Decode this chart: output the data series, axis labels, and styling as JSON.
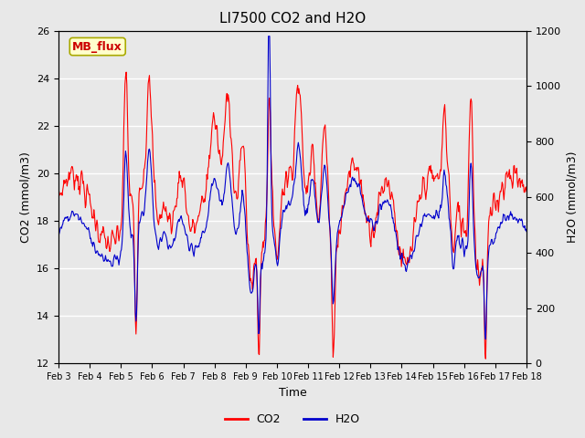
{
  "title": "LI7500 CO2 and H2O",
  "xlabel": "Time",
  "ylabel_left": "CO2 (mmol/m3)",
  "ylabel_right": "H2O (mmol/m3)",
  "ylim_left": [
    12,
    26
  ],
  "ylim_right": [
    0,
    1200
  ],
  "yticks_left": [
    12,
    14,
    16,
    18,
    20,
    22,
    24,
    26
  ],
  "yticks_right": [
    0,
    200,
    400,
    600,
    800,
    1000,
    1200
  ],
  "xtick_labels": [
    "Feb 3",
    "Feb 4",
    "Feb 5",
    "Feb 6",
    "Feb 7",
    "Feb 8",
    "Feb 9",
    "Feb 10",
    "Feb 11",
    "Feb 12",
    "Feb 13",
    "Feb 14",
    "Feb 15",
    "Feb 16",
    "Feb 17",
    "Feb 18"
  ],
  "co2_color": "#FF0000",
  "h2o_color": "#0000CC",
  "background_color": "#E8E8E8",
  "annotation_text": "MB_flux",
  "annotation_bg": "#FFFFCC",
  "annotation_border": "#AAAA00",
  "annotation_fg": "#CC0000",
  "title_fontsize": 11,
  "label_fontsize": 9,
  "tick_fontsize": 8,
  "legend_fontsize": 9,
  "line_width": 0.8
}
